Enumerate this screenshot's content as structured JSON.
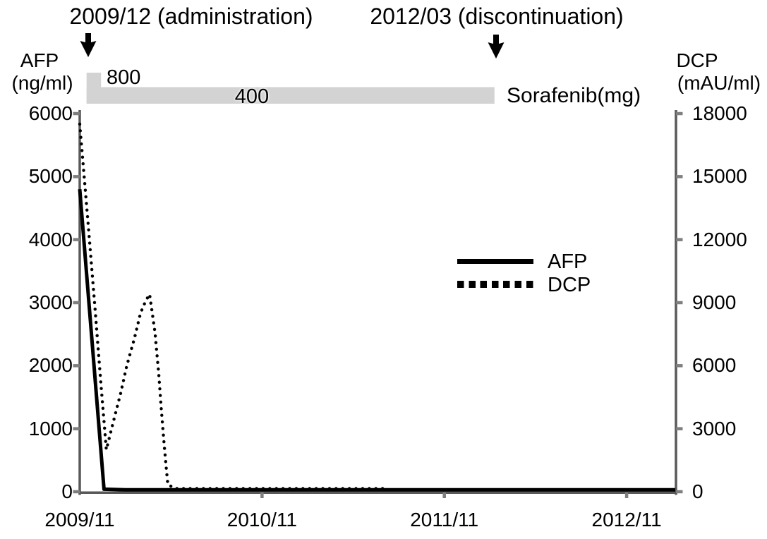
{
  "colors": {
    "background": "#ffffff",
    "text": "#000000",
    "axis": "#595959",
    "tick": "#7f7f7f",
    "dose_bar": "#d3d3d3",
    "afp_line": "#000000",
    "dcp_line": "#000000"
  },
  "figure": {
    "annotations": {
      "administration": "2009/12 (administration)",
      "discontinuation": "2012/03 (discontinuation)"
    },
    "left_axis_title": {
      "line1": "AFP",
      "line2": "(ng/ml)"
    },
    "right_axis_title": {
      "line1": "DCP",
      "line2": "(mAU/ml)"
    },
    "dose_bar": {
      "label": "Sorafenib(mg)",
      "segments": [
        {
          "dose": "800",
          "start_month": 0.45,
          "end_month": 1.4,
          "level": "high"
        },
        {
          "dose": "400",
          "start_month": 0.45,
          "end_month": 27.3,
          "level": "low"
        }
      ]
    },
    "legend": [
      {
        "name": "AFP",
        "line_style": "solid"
      },
      {
        "name": "DCP",
        "line_style": "dotted"
      }
    ]
  },
  "chart_data": {
    "type": "line",
    "grid": false,
    "legend_position": "center-right",
    "x_axis": {
      "tick_labels": [
        "2009/11",
        "2010/11",
        "2011/11",
        "2012/11"
      ],
      "tick_months": [
        0,
        12,
        24,
        36
      ],
      "months_span": [
        0,
        39.2
      ]
    },
    "y_left": {
      "label": "AFP (ng/ml)",
      "range": [
        0,
        6000
      ],
      "ticks": [
        6000,
        5000,
        4000,
        3000,
        2000,
        1000,
        0
      ]
    },
    "y_right": {
      "label": "DCP (mAU/ml)",
      "range": [
        0,
        18000
      ],
      "ticks": [
        18000,
        15000,
        12000,
        9000,
        6000,
        3000,
        0
      ]
    },
    "events": [
      {
        "date": "2009/12",
        "label": "administration"
      },
      {
        "date": "2012/03",
        "label": "discontinuation"
      }
    ],
    "series": [
      {
        "name": "AFP",
        "axis": "left",
        "style": "solid",
        "color": "#000000",
        "points": [
          [
            0,
            4800
          ],
          [
            1.6,
            40
          ],
          [
            3,
            30
          ],
          [
            39.2,
            30
          ]
        ]
      },
      {
        "name": "DCP",
        "axis": "right",
        "style": "dotted",
        "color": "#000000",
        "points": [
          [
            0,
            17500
          ],
          [
            0.5,
            13200
          ],
          [
            1.0,
            8800
          ],
          [
            1.4,
            5100
          ],
          [
            1.75,
            2000
          ],
          [
            2.2,
            3300
          ],
          [
            2.7,
            4700
          ],
          [
            3.1,
            6000
          ],
          [
            3.6,
            7300
          ],
          [
            4.0,
            8500
          ],
          [
            4.35,
            9100
          ],
          [
            4.6,
            9400
          ],
          [
            4.95,
            7600
          ],
          [
            5.2,
            5600
          ],
          [
            5.35,
            4100
          ],
          [
            5.55,
            2300
          ],
          [
            5.7,
            1100
          ],
          [
            5.8,
            340
          ],
          [
            6.3,
            150
          ],
          [
            20.1,
            150
          ]
        ]
      }
    ]
  }
}
